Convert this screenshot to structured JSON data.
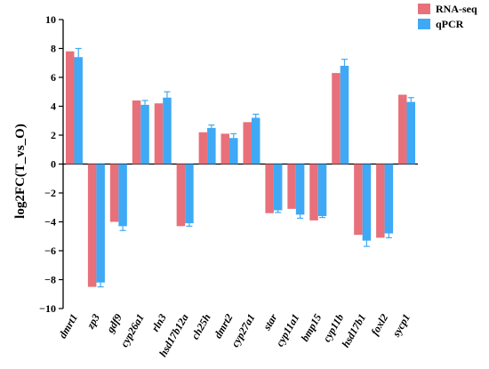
{
  "chart_data": {
    "type": "bar",
    "title": "",
    "xlabel": "",
    "ylabel": "log2FC(T_vs_O)",
    "ylim": [
      -10,
      10
    ],
    "yticks": [
      -10,
      -8,
      -6,
      -4,
      -2,
      0,
      2,
      4,
      6,
      8,
      10
    ],
    "grid": false,
    "legend_position": "top-right",
    "categories": [
      "dmrt1",
      "zp3",
      "gdf9",
      "cyp26a1",
      "rln3",
      "hsd17b12a",
      "ch25h",
      "dmrt2",
      "cyp27a1",
      "star",
      "cyp11a1",
      "bmp15",
      "cyp11b",
      "hsd17b1",
      "foxl2",
      "sycp1"
    ],
    "series": [
      {
        "name": "RNA-seq",
        "color": "#e8707a",
        "values": [
          7.8,
          -8.5,
          -4.0,
          4.4,
          4.2,
          -4.3,
          2.2,
          2.1,
          2.9,
          -3.4,
          -3.1,
          -3.9,
          6.3,
          -4.9,
          -5.1,
          4.8
        ]
      },
      {
        "name": "qPCR",
        "color": "#3fa9f5",
        "values": [
          7.4,
          -8.2,
          -4.3,
          4.1,
          4.6,
          -4.1,
          2.5,
          1.8,
          3.2,
          -3.2,
          -3.5,
          -3.6,
          6.8,
          -5.3,
          -4.8,
          4.3
        ],
        "errors": [
          0.6,
          0.3,
          0.3,
          0.3,
          0.4,
          0.2,
          0.2,
          0.3,
          0.25,
          0.15,
          0.25,
          0.1,
          0.45,
          0.4,
          0.3,
          0.3
        ]
      }
    ]
  }
}
